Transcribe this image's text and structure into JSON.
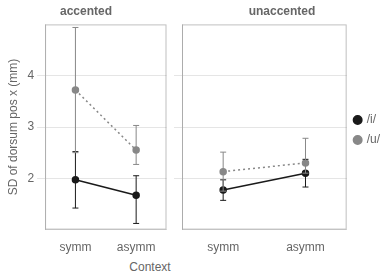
{
  "chart_data": [
    {
      "type": "line",
      "title": "accented",
      "categories": [
        "symm",
        "asymm"
      ],
      "ylabel": "SD of dorsum pos x (mm)",
      "xlabel": "Context",
      "ylim": [
        1.0,
        5.0
      ],
      "yticks": [
        2,
        3,
        4
      ],
      "grid": true,
      "series": [
        {
          "name": "/i/",
          "color": "#1a1a1a",
          "line_style": "solid",
          "marker": "circle",
          "values": [
            1.97,
            1.67
          ],
          "yerr_low": [
            0.55,
            0.55
          ],
          "yerr_high": [
            0.55,
            0.38
          ]
        },
        {
          "name": "/u/",
          "color": "#888888",
          "line_style": "dotted",
          "marker": "circle",
          "values": [
            3.72,
            2.55
          ],
          "yerr_low": [
            1.22,
            0.28
          ],
          "yerr_high": [
            1.22,
            0.48
          ]
        }
      ]
    },
    {
      "type": "line",
      "title": "unaccented",
      "categories": [
        "symm",
        "asymm"
      ],
      "ylim": [
        1.0,
        5.0
      ],
      "yticks": [
        2,
        3,
        4
      ],
      "grid": true,
      "tick_labels": "x",
      "legend": "right",
      "series": [
        {
          "name": "/i/",
          "color": "#1a1a1a",
          "line_style": "solid",
          "marker": "circle",
          "values": [
            1.77,
            2.1
          ],
          "yerr_low": [
            0.2,
            0.27
          ],
          "yerr_high": [
            0.2,
            0.27
          ]
        },
        {
          "name": "/u/",
          "color": "#888888",
          "line_style": "dotted",
          "marker": "circle",
          "values": [
            2.13,
            2.3
          ],
          "yerr_low": [
            0.38,
            0.2
          ],
          "yerr_high": [
            0.38,
            0.48
          ]
        }
      ]
    }
  ]
}
